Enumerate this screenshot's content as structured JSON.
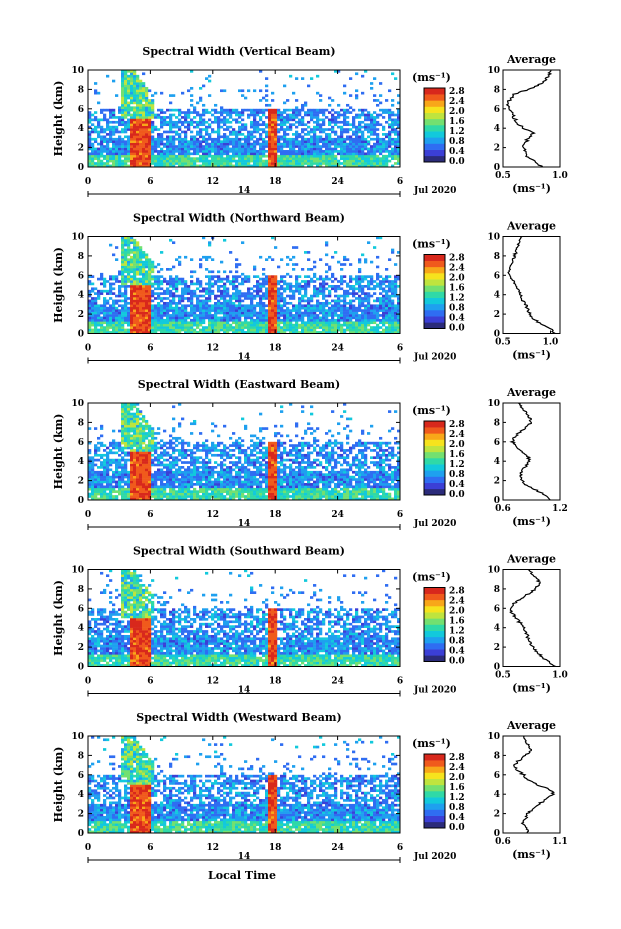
{
  "colors": {
    "colormap": [
      "#2b2b7a",
      "#3b3fd6",
      "#2f6df2",
      "#1ea0ef",
      "#12c9dc",
      "#2fd9a7",
      "#73e070",
      "#bfe43e",
      "#f6e31d",
      "#f8a719",
      "#f05a1c",
      "#d8281c"
    ],
    "line": "#000000",
    "background": "#ffffff"
  },
  "shared": {
    "xticks": [
      "0",
      "6",
      "12",
      "18",
      "24",
      "6"
    ],
    "day_label": "14",
    "date_label": "Jul 2020",
    "xlabel": "Local Time",
    "ylabel": "Height (km)",
    "yticks": [
      "0",
      "2",
      "4",
      "6",
      "8",
      "10"
    ],
    "colorbar_unit": "(ms⁻¹)",
    "colorbar_ticks": [
      "0.0",
      "0.4",
      "0.8",
      "1.2",
      "1.6",
      "2.0",
      "2.4",
      "2.8"
    ],
    "avg_title": "Average",
    "avg_xlabel": "(ms⁻¹)"
  },
  "chart_data": [
    {
      "type": "heatmap",
      "title": "Spectral Width (Vertical Beam)",
      "x_range_hours": [
        0,
        30
      ],
      "ylim": [
        0,
        10
      ],
      "colorbar_range": [
        0.0,
        2.8
      ],
      "profile": {
        "type": "line",
        "title": "Average",
        "xlim": [
          0.5,
          1.0
        ],
        "xticks": [
          "0.5",
          "1.0"
        ],
        "height_km": [
          0,
          0.5,
          1,
          1.5,
          2,
          2.5,
          3,
          3.5,
          4,
          4.5,
          5,
          5.5,
          6,
          6.5,
          7,
          7.5,
          8,
          8.5,
          9,
          9.5,
          10
        ],
        "width": [
          0.85,
          0.78,
          0.72,
          0.7,
          0.68,
          0.7,
          0.72,
          0.76,
          0.68,
          0.63,
          0.6,
          0.58,
          0.55,
          0.54,
          0.56,
          0.6,
          0.72,
          0.82,
          0.88,
          0.9,
          0.92
        ]
      }
    },
    {
      "type": "heatmap",
      "title": "Spectral Width (Northward Beam)",
      "x_range_hours": [
        0,
        30
      ],
      "ylim": [
        0,
        10
      ],
      "colorbar_range": [
        0.0,
        2.8
      ],
      "profile": {
        "type": "line",
        "title": "Average",
        "xlim": [
          0.5,
          1.1
        ],
        "xticks": [
          "0.5",
          "1.0"
        ],
        "height_km": [
          0,
          0.5,
          1,
          1.5,
          2,
          2.5,
          3,
          3.5,
          4,
          4.5,
          5,
          5.5,
          6,
          6.5,
          7,
          7.5,
          8,
          8.5,
          9,
          9.5,
          10
        ],
        "width": [
          1.05,
          1.0,
          0.9,
          0.82,
          0.78,
          0.76,
          0.74,
          0.7,
          0.68,
          0.66,
          0.64,
          0.6,
          0.58,
          0.56,
          0.58,
          0.6,
          0.62,
          0.64,
          0.66,
          0.68,
          0.7
        ]
      }
    },
    {
      "type": "heatmap",
      "title": "Spectral Width (Eastward Beam)",
      "x_range_hours": [
        0,
        30
      ],
      "ylim": [
        0,
        10
      ],
      "colorbar_range": [
        0.0,
        2.8
      ],
      "profile": {
        "type": "line",
        "title": "Average",
        "xlim": [
          0.6,
          1.2
        ],
        "xticks": [
          "0.6",
          "1.2"
        ],
        "height_km": [
          0,
          0.5,
          1,
          1.5,
          2,
          2.5,
          3,
          3.5,
          4,
          4.5,
          5,
          5.5,
          6,
          6.5,
          7,
          7.5,
          8,
          8.5,
          9,
          9.5,
          10
        ],
        "width": [
          1.1,
          1.05,
          0.95,
          0.85,
          0.8,
          0.78,
          0.8,
          0.84,
          0.88,
          0.86,
          0.8,
          0.74,
          0.7,
          0.72,
          0.78,
          0.84,
          0.9,
          0.88,
          0.84,
          0.8,
          0.76
        ]
      }
    },
    {
      "type": "heatmap",
      "title": "Spectral Width (Southward Beam)",
      "x_range_hours": [
        0,
        30
      ],
      "ylim": [
        0,
        10
      ],
      "colorbar_range": [
        0.0,
        2.8
      ],
      "profile": {
        "type": "line",
        "title": "Average",
        "xlim": [
          0.5,
          1.0
        ],
        "xticks": [
          "0.5",
          "1.0"
        ],
        "height_km": [
          0,
          0.5,
          1,
          1.5,
          2,
          2.5,
          3,
          3.5,
          4,
          4.5,
          5,
          5.5,
          6,
          6.5,
          7,
          7.5,
          8,
          8.5,
          9,
          9.5,
          10
        ],
        "width": [
          0.95,
          0.9,
          0.84,
          0.8,
          0.76,
          0.74,
          0.72,
          0.7,
          0.68,
          0.65,
          0.62,
          0.58,
          0.56,
          0.6,
          0.66,
          0.72,
          0.78,
          0.82,
          0.8,
          0.76,
          0.72
        ]
      }
    },
    {
      "type": "heatmap",
      "title": "Spectral Width (Westward Beam)",
      "x_range_hours": [
        0,
        30
      ],
      "ylim": [
        0,
        10
      ],
      "colorbar_range": [
        0.0,
        2.8
      ],
      "profile": {
        "type": "line",
        "title": "Average",
        "xlim": [
          0.6,
          1.1
        ],
        "xticks": [
          "0.6",
          "1.1"
        ],
        "height_km": [
          0,
          0.5,
          1,
          1.5,
          2,
          2.5,
          3,
          3.5,
          4,
          4.5,
          5,
          5.5,
          6,
          6.5,
          7,
          7.5,
          8,
          8.5,
          9,
          9.5,
          10
        ],
        "width": [
          0.82,
          0.8,
          0.78,
          0.8,
          0.82,
          0.86,
          0.92,
          0.98,
          1.05,
          1.0,
          0.9,
          0.82,
          0.78,
          0.72,
          0.7,
          0.74,
          0.8,
          0.84,
          0.82,
          0.8,
          0.78
        ]
      }
    }
  ]
}
